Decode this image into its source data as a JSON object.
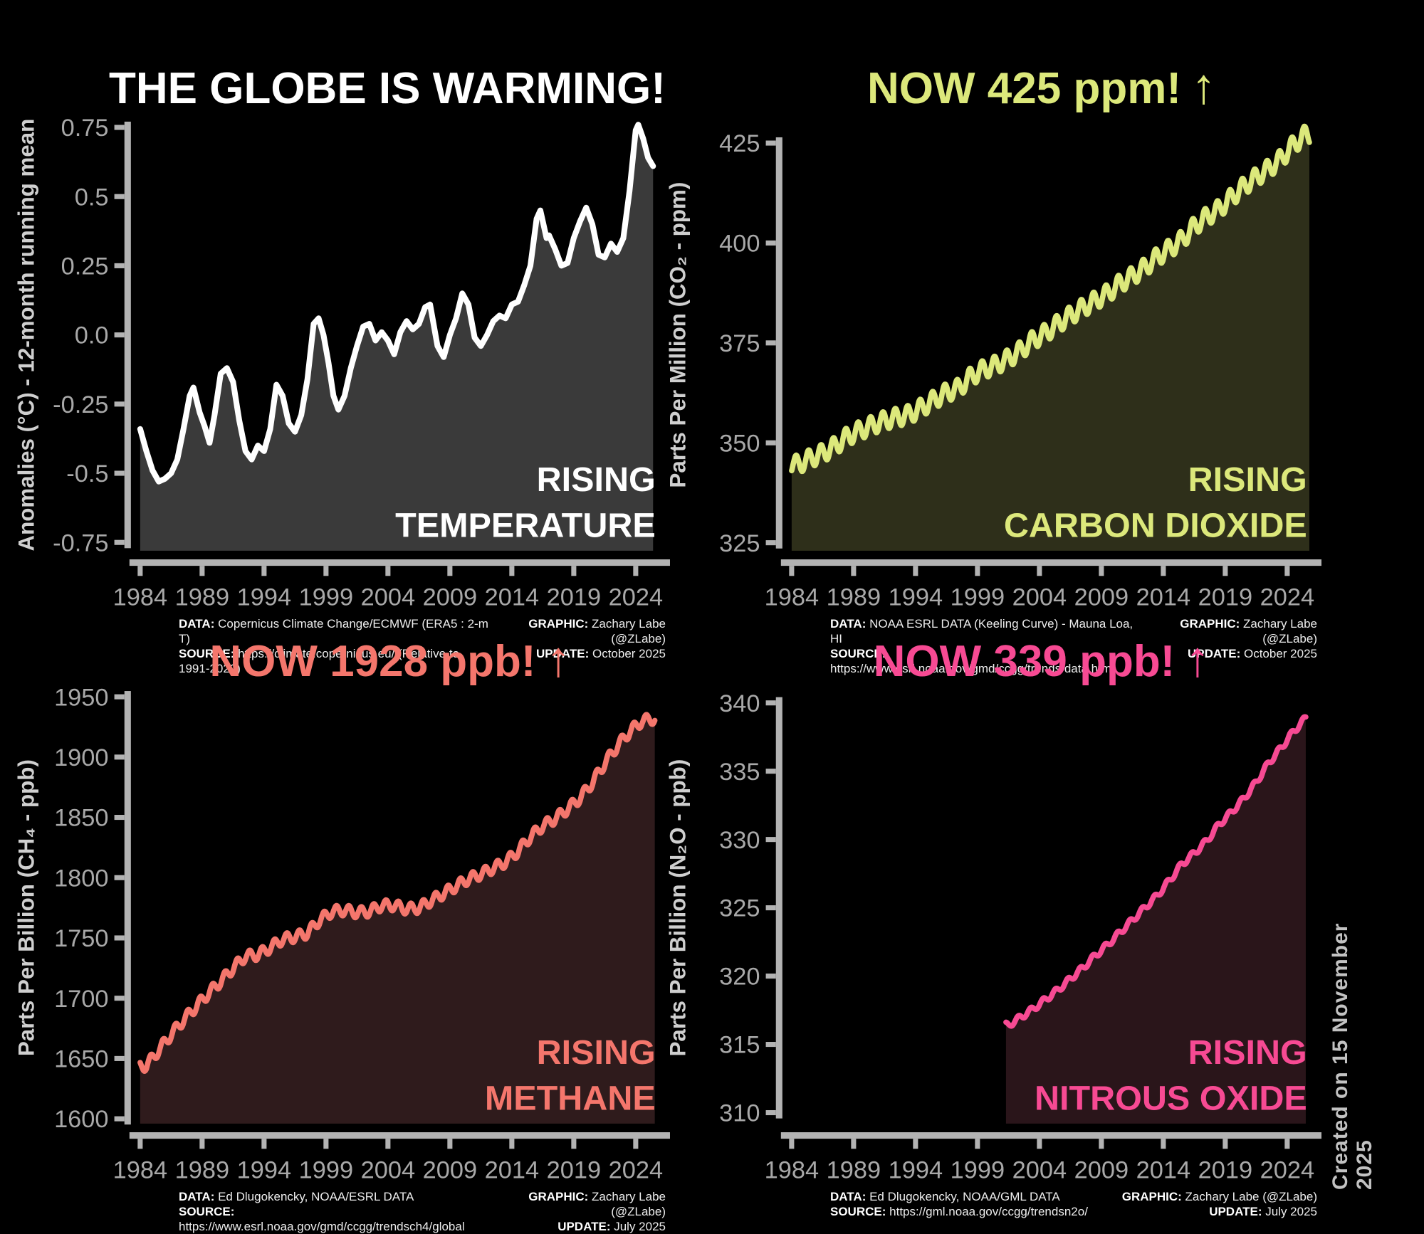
{
  "page": {
    "background": "#000000"
  },
  "created_note": "Created on 15 November 2025",
  "chart_data": [
    {
      "panel": "temperature",
      "type": "area",
      "title": "THE GLOBE IS WARMING!",
      "title_arrow": "",
      "title_color": "#ffffff",
      "line_color": "#ffffff",
      "fill_color": "#3a3a3a",
      "axis_color": "#b3b3b3",
      "tick_label_color": "#a8a8a8",
      "ylabel_color": "#cfcfcf",
      "ylabel": "Anomalies (°C) - 12-month running mean",
      "inplot_label_line1": "RISING",
      "inplot_label_line2": "TEMPERATURE",
      "xlim": [
        1983.6,
        2026.3
      ],
      "ylim": [
        -0.78,
        0.78
      ],
      "xticks": [
        1984,
        1989,
        1994,
        1999,
        2004,
        2009,
        2014,
        2019,
        2024
      ],
      "xtick_labels": [
        "1984",
        "1989",
        "1994",
        "1999",
        "2004",
        "2009",
        "2014",
        "2019",
        "2024"
      ],
      "yticks": [
        0.75,
        0.5,
        0.25,
        0.0,
        -0.25,
        -0.5,
        -0.75
      ],
      "ytick_labels": [
        "0.75",
        "0.5",
        "0.25",
        "0.0",
        "-0.25",
        "-0.5",
        "-0.75"
      ],
      "series": {
        "kind": "points",
        "points": [
          [
            1984.0,
            -0.34
          ],
          [
            1984.5,
            -0.42
          ],
          [
            1985.0,
            -0.49
          ],
          [
            1985.5,
            -0.53
          ],
          [
            1986.0,
            -0.52
          ],
          [
            1986.5,
            -0.5
          ],
          [
            1987.0,
            -0.45
          ],
          [
            1987.5,
            -0.34
          ],
          [
            1988.0,
            -0.22
          ],
          [
            1988.3,
            -0.19
          ],
          [
            1988.8,
            -0.28
          ],
          [
            1989.2,
            -0.33
          ],
          [
            1989.6,
            -0.39
          ],
          [
            1990.0,
            -0.29
          ],
          [
            1990.5,
            -0.14
          ],
          [
            1991.0,
            -0.12
          ],
          [
            1991.5,
            -0.17
          ],
          [
            1992.0,
            -0.31
          ],
          [
            1992.5,
            -0.42
          ],
          [
            1993.0,
            -0.45
          ],
          [
            1993.5,
            -0.4
          ],
          [
            1994.0,
            -0.42
          ],
          [
            1994.5,
            -0.34
          ],
          [
            1995.0,
            -0.18
          ],
          [
            1995.5,
            -0.22
          ],
          [
            1996.0,
            -0.32
          ],
          [
            1996.5,
            -0.35
          ],
          [
            1997.0,
            -0.29
          ],
          [
            1997.5,
            -0.16
          ],
          [
            1998.0,
            0.04
          ],
          [
            1998.4,
            0.06
          ],
          [
            1998.8,
            0.0
          ],
          [
            1999.2,
            -0.1
          ],
          [
            1999.6,
            -0.22
          ],
          [
            2000.0,
            -0.27
          ],
          [
            2000.5,
            -0.22
          ],
          [
            2001.0,
            -0.12
          ],
          [
            2001.5,
            -0.04
          ],
          [
            2002.0,
            0.03
          ],
          [
            2002.5,
            0.04
          ],
          [
            2003.0,
            -0.02
          ],
          [
            2003.5,
            0.01
          ],
          [
            2004.0,
            -0.02
          ],
          [
            2004.5,
            -0.07
          ],
          [
            2005.0,
            0.01
          ],
          [
            2005.5,
            0.05
          ],
          [
            2006.0,
            0.02
          ],
          [
            2006.5,
            0.04
          ],
          [
            2007.0,
            0.1
          ],
          [
            2007.4,
            0.11
          ],
          [
            2008.0,
            -0.04
          ],
          [
            2008.5,
            -0.08
          ],
          [
            2009.0,
            0.0
          ],
          [
            2009.5,
            0.06
          ],
          [
            2010.0,
            0.15
          ],
          [
            2010.5,
            0.11
          ],
          [
            2011.0,
            -0.01
          ],
          [
            2011.5,
            -0.04
          ],
          [
            2012.0,
            0.0
          ],
          [
            2012.5,
            0.05
          ],
          [
            2013.0,
            0.07
          ],
          [
            2013.5,
            0.06
          ],
          [
            2014.0,
            0.11
          ],
          [
            2014.5,
            0.12
          ],
          [
            2015.0,
            0.18
          ],
          [
            2015.5,
            0.25
          ],
          [
            2016.0,
            0.42
          ],
          [
            2016.3,
            0.45
          ],
          [
            2016.8,
            0.35
          ],
          [
            2017.0,
            0.36
          ],
          [
            2017.5,
            0.31
          ],
          [
            2018.0,
            0.25
          ],
          [
            2018.5,
            0.26
          ],
          [
            2019.0,
            0.35
          ],
          [
            2019.5,
            0.41
          ],
          [
            2020.0,
            0.46
          ],
          [
            2020.5,
            0.4
          ],
          [
            2021.0,
            0.29
          ],
          [
            2021.5,
            0.28
          ],
          [
            2022.0,
            0.33
          ],
          [
            2022.5,
            0.3
          ],
          [
            2023.0,
            0.35
          ],
          [
            2023.5,
            0.52
          ],
          [
            2024.0,
            0.74
          ],
          [
            2024.2,
            0.76
          ],
          [
            2024.6,
            0.71
          ],
          [
            2025.0,
            0.64
          ],
          [
            2025.4,
            0.61
          ]
        ]
      },
      "footer": {
        "data_label": "DATA:",
        "data_value": "Copernicus Climate Change/ECMWF (ERA5 : 2-m T)",
        "source_label": "SOURCE:",
        "source_value": "https://climate.copernicus.eu/ (Relative to 1991-2020)",
        "graphic_label": "GRAPHIC:",
        "graphic_value": "Zachary Labe (@ZLabe)",
        "update_label": "UPDATE:",
        "update_value": "October 2025"
      }
    },
    {
      "panel": "carbon-dioxide",
      "type": "area",
      "title": "NOW 425 ppm!",
      "title_arrow": "↑",
      "title_color": "#dce87b",
      "line_color": "#dce87b",
      "fill_color": "#2e2f1a",
      "axis_color": "#b3b3b3",
      "tick_label_color": "#a8a8a8",
      "ylabel_color": "#cfcfcf",
      "ylabel": "Parts Per Million (CO₂ - ppm)",
      "inplot_label_line1": "RISING",
      "inplot_label_line2": "CARBON DIOXIDE",
      "xlim": [
        1983.6,
        2026.3
      ],
      "ylim": [
        323,
        431
      ],
      "xticks": [
        1984,
        1989,
        1994,
        1999,
        2004,
        2009,
        2014,
        2019,
        2024
      ],
      "xtick_labels": [
        "1984",
        "1989",
        "1994",
        "1999",
        "2004",
        "2009",
        "2014",
        "2019",
        "2024"
      ],
      "yticks": [
        425,
        400,
        375,
        350,
        325
      ],
      "ytick_labels": [
        "425",
        "400",
        "375",
        "350",
        "325"
      ],
      "series": {
        "kind": "seasonal",
        "anchor_years": [
          1984,
          1985,
          1986,
          1987,
          1988,
          1989,
          1990,
          1991,
          1992,
          1993,
          1994,
          1995,
          1996,
          1997,
          1998,
          1999,
          2000,
          2001,
          2002,
          2003,
          2004,
          2005,
          2006,
          2007,
          2008,
          2009,
          2010,
          2011,
          2012,
          2013,
          2014,
          2015,
          2016,
          2017,
          2018,
          2019,
          2020,
          2021,
          2022,
          2023,
          2024,
          2025
        ],
        "annual_values": [
          344.6,
          346.1,
          347.4,
          349.2,
          351.6,
          353.1,
          354.4,
          355.6,
          356.4,
          357.1,
          358.8,
          360.8,
          362.6,
          363.7,
          366.7,
          368.4,
          369.5,
          371.1,
          373.2,
          375.8,
          377.5,
          379.8,
          381.9,
          383.8,
          385.6,
          387.4,
          389.9,
          391.7,
          393.9,
          396.5,
          398.6,
          400.8,
          404.2,
          406.6,
          408.5,
          411.4,
          414.2,
          416.5,
          418.6,
          421.1,
          424.6,
          427.2
        ],
        "amplitude": 2.3,
        "peak_frac": 0.37,
        "start": 1984.0,
        "end": 2025.79
      },
      "footer": {
        "data_label": "DATA:",
        "data_value": "NOAA ESRL DATA (Keeling Curve) - Mauna Loa, HI",
        "source_label": "SOURCE:",
        "source_value": "https://www.esrl.noaa.gov/gmd/ccgg/trends/data.html",
        "graphic_label": "GRAPHIC:",
        "graphic_value": "Zachary Labe (@ZLabe)",
        "update_label": "UPDATE:",
        "update_value": "October 2025"
      }
    },
    {
      "panel": "methane",
      "type": "area",
      "title": "NOW 1928 ppb!",
      "title_arrow": "↑",
      "title_color": "#f4766c",
      "line_color": "#f4766c",
      "fill_color": "#2f1b1c",
      "axis_color": "#b3b3b3",
      "tick_label_color": "#a8a8a8",
      "ylabel_color": "#cfcfcf",
      "ylabel": "Parts Per Billion (CH₄ - ppb)",
      "inplot_label_line1": "RISING",
      "inplot_label_line2": "METHANE",
      "xlim": [
        1983.6,
        2026.3
      ],
      "ylim": [
        1596,
        1954
      ],
      "xticks": [
        1984,
        1989,
        1994,
        1999,
        2004,
        2009,
        2014,
        2019,
        2024
      ],
      "xtick_labels": [
        "1984",
        "1989",
        "1994",
        "1999",
        "2004",
        "2009",
        "2014",
        "2019",
        "2024"
      ],
      "yticks": [
        1950,
        1900,
        1850,
        1800,
        1750,
        1700,
        1650,
        1600
      ],
      "ytick_labels": [
        "1950",
        "1900",
        "1850",
        "1800",
        "1750",
        "1700",
        "1650",
        "1600"
      ],
      "series": {
        "kind": "seasonal",
        "anchor_years": [
          1984,
          1985,
          1986,
          1987,
          1988,
          1989,
          1990,
          1991,
          1992,
          1993,
          1994,
          1995,
          1996,
          1997,
          1998,
          1999,
          2000,
          2001,
          2002,
          2003,
          2004,
          2005,
          2006,
          2007,
          2008,
          2009,
          2010,
          2011,
          2012,
          2013,
          2014,
          2015,
          2016,
          2017,
          2018,
          2019,
          2020,
          2021,
          2022,
          2023,
          2024,
          2025
        ],
        "annual_values": [
          1644,
          1657,
          1670,
          1682,
          1693,
          1704,
          1714,
          1725,
          1735,
          1736,
          1742,
          1749,
          1751,
          1754,
          1765,
          1772,
          1773,
          1771,
          1772,
          1777,
          1777,
          1774,
          1775,
          1781,
          1787,
          1793,
          1799,
          1803,
          1808,
          1813,
          1822,
          1834,
          1843,
          1849,
          1857,
          1866,
          1879,
          1895,
          1909,
          1921,
          1930,
          1932
        ],
        "amplitude": 4.5,
        "peak_frac": 0.85,
        "start": 1984.0,
        "end": 2025.54
      },
      "footer": {
        "data_label": "DATA:",
        "data_value": "Ed Dlugokencky, NOAA/ESRL DATA",
        "source_label": "SOURCE:",
        "source_value": "https://www.esrl.noaa.gov/gmd/ccgg/trendsch4/global",
        "graphic_label": "GRAPHIC:",
        "graphic_value": "Zachary Labe (@ZLabe)",
        "update_label": "UPDATE:",
        "update_value": "July 2025"
      }
    },
    {
      "panel": "nitrous-oxide",
      "type": "area",
      "title": "NOW 339 ppb!",
      "title_arrow": "↑",
      "title_color": "#f74a93",
      "line_color": "#f74a93",
      "fill_color": "#2a151a",
      "axis_color": "#b3b3b3",
      "tick_label_color": "#a8a8a8",
      "ylabel_color": "#cfcfcf",
      "ylabel": "Parts Per Billion (N₂O - ppb)",
      "inplot_label_line1": "RISING",
      "inplot_label_line2": "NITROUS OXIDE",
      "xlim": [
        1983.6,
        2026.3
      ],
      "ylim": [
        309.2,
        340.8
      ],
      "xticks": [
        1984,
        1989,
        1994,
        1999,
        2004,
        2009,
        2014,
        2019,
        2024
      ],
      "xtick_labels": [
        "1984",
        "1989",
        "1994",
        "1999",
        "2004",
        "2009",
        "2014",
        "2019",
        "2024"
      ],
      "yticks": [
        340,
        335,
        330,
        325,
        320,
        315,
        310
      ],
      "ytick_labels": [
        "340",
        "335",
        "330",
        "325",
        "320",
        "315",
        "310"
      ],
      "series": {
        "kind": "seasonal",
        "anchor_years": [
          2001,
          2002,
          2003,
          2004,
          2005,
          2006,
          2007,
          2008,
          2009,
          2010,
          2011,
          2012,
          2013,
          2014,
          2015,
          2016,
          2017,
          2018,
          2019,
          2020,
          2021,
          2022,
          2023,
          2024,
          2025
        ],
        "annual_values": [
          316.4,
          317.0,
          317.6,
          318.3,
          319.0,
          319.8,
          320.6,
          321.5,
          322.3,
          323.2,
          324.1,
          325.0,
          325.9,
          327.0,
          328.2,
          329.0,
          329.9,
          331.1,
          332.0,
          333.0,
          334.2,
          335.6,
          336.7,
          337.9,
          338.9
        ],
        "amplitude": 0.22,
        "peak_frac": 0.3,
        "start": 2001.3,
        "end": 2025.5
      },
      "footer": {
        "data_label": "DATA:",
        "data_value": "Ed Dlugokencky, NOAA/GML DATA",
        "source_label": "SOURCE:",
        "source_value": "https://gml.noaa.gov/ccgg/trendsn2o/",
        "graphic_label": "GRAPHIC:",
        "graphic_value": "Zachary Labe (@ZLabe)",
        "update_label": "UPDATE:",
        "update_value": "July 2025"
      }
    }
  ]
}
